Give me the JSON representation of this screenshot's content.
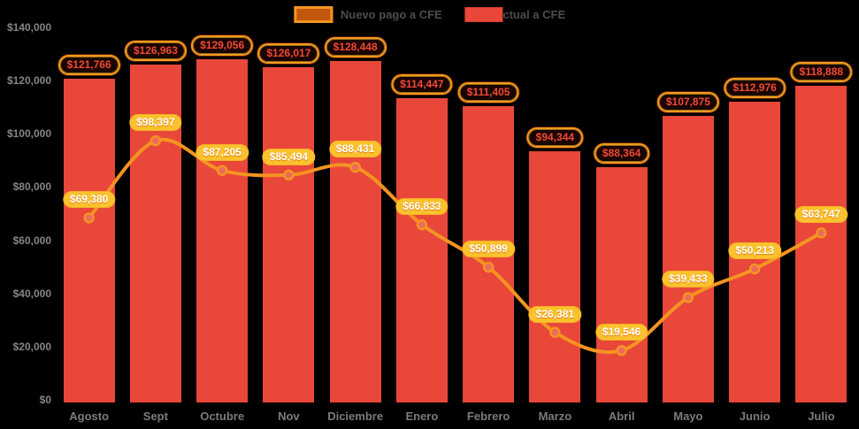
{
  "legend": {
    "items": [
      {
        "label": "Nuevo pago a CFE",
        "swatch": "line-swatch",
        "color": "#f59421"
      },
      {
        "label": "Pago actual a CFE",
        "swatch": "bar-swatch",
        "color": "#e8473a"
      }
    ]
  },
  "chart_data": {
    "type": "combo-bar-line",
    "title": "",
    "categories": [
      "Agosto",
      "Sept",
      "Octubre",
      "Nov",
      "Diciembre",
      "Enero",
      "Febrero",
      "Marzo",
      "Abril",
      "Mayo",
      "Junio",
      "Julio"
    ],
    "series": [
      {
        "name": "Pago actual a CFE",
        "type": "bar",
        "color": "#e8473a",
        "values": [
          121766,
          126963,
          129056,
          126017,
          128448,
          114447,
          111405,
          94344,
          88364,
          107875,
          112976,
          118888
        ],
        "data_labels": [
          "$121,766",
          "$126,963",
          "$129,056",
          "$126,017",
          "$128,448",
          "$114,447",
          "$111,405",
          "$94,344",
          "$88,364",
          "$107,875",
          "$112,976",
          "$118,888"
        ]
      },
      {
        "name": "Nuevo pago a CFE",
        "type": "line",
        "color": "#f59421",
        "point_fill": "#ee6a5e",
        "values": [
          69380,
          98397,
          87205,
          85494,
          88431,
          66833,
          50899,
          26381,
          19546,
          39433,
          50213,
          63747
        ],
        "data_labels": [
          "$69,380",
          "$98,397",
          "$87,205",
          "$85,494",
          "$88,431",
          "$66,833",
          "$50,899",
          "$26,381",
          "$19,546",
          "$39,433",
          "$50,213",
          "$63,747"
        ]
      }
    ],
    "ylim": [
      0,
      140000
    ],
    "ytick_step": 20000,
    "ytick_labels": [
      "$0",
      "$20,000",
      "$40,000",
      "$60,000",
      "$80,000",
      "$100,000",
      "$120,000",
      "$140,000"
    ],
    "grid": false,
    "legend_position": "top-center",
    "background": "#000000",
    "currency_prefix": "$"
  },
  "layout_colors": {
    "bar_fill": "#e8473a",
    "line_stroke": "#f59421",
    "point_fill": "#ee6a5e",
    "bar_label_bg": "#1a0300",
    "bar_label_text": "#ef4b36",
    "bar_label_border": "#f09b1f",
    "line_label_bg": "#fbc22d",
    "line_label_text": "#ffffff",
    "axis_text": "#858585",
    "month_text": "#7b7b7b",
    "legend_text": "#4c4c4c"
  }
}
